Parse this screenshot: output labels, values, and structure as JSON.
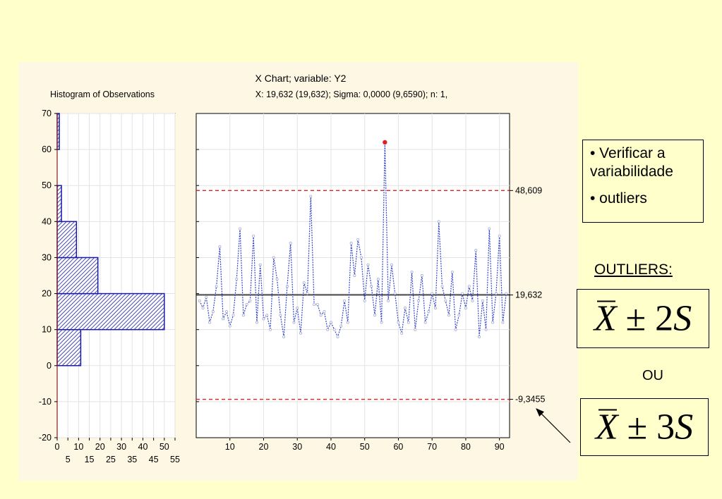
{
  "chart_data": [
    {
      "type": "bar",
      "orientation": "horizontal",
      "title": "Histogram of Observations",
      "bins": [
        {
          "from": 0,
          "to": 10,
          "count": 11
        },
        {
          "from": 10,
          "to": 20,
          "count": 50
        },
        {
          "from": 20,
          "to": 30,
          "count": 19
        },
        {
          "from": 30,
          "to": 40,
          "count": 9
        },
        {
          "from": 40,
          "to": 50,
          "count": 2
        },
        {
          "from": 50,
          "to": 60,
          "count": 0
        },
        {
          "from": 60,
          "to": 70,
          "count": 1
        }
      ],
      "ylim": [
        -20,
        70
      ],
      "yticks": [
        70,
        60,
        50,
        40,
        30,
        20,
        10,
        0,
        -10,
        -20
      ],
      "xlim": [
        0,
        55
      ],
      "xticks_top": [
        0,
        10,
        20,
        30,
        40,
        50
      ],
      "xticks_bottom": [
        5,
        15,
        25,
        35,
        45,
        55
      ],
      "bar_color": "#1a1aa8",
      "hatch": "diagonal"
    },
    {
      "type": "line",
      "title": "X Chart; variable:  Y2",
      "subtitle": "X: 19,632 (19,632); Sigma: 0,0000 (9,6590); n: 1,",
      "x": [
        1,
        2,
        3,
        4,
        5,
        6,
        7,
        8,
        9,
        10,
        11,
        12,
        13,
        14,
        15,
        16,
        17,
        18,
        19,
        20,
        21,
        22,
        23,
        24,
        25,
        26,
        27,
        28,
        29,
        30,
        31,
        32,
        33,
        34,
        35,
        36,
        37,
        38,
        39,
        40,
        41,
        42,
        43,
        44,
        45,
        46,
        47,
        48,
        49,
        50,
        51,
        52,
        53,
        54,
        55,
        56,
        57,
        58,
        59,
        60,
        61,
        62,
        63,
        64,
        65,
        66,
        67,
        68,
        69,
        70,
        71,
        72,
        73,
        74,
        75,
        76,
        77,
        78,
        79,
        80,
        81,
        82,
        83,
        84,
        85,
        86,
        87,
        88,
        89,
        90,
        91,
        92
      ],
      "values": [
        18,
        16,
        19,
        12,
        15,
        22,
        33,
        13,
        15,
        11,
        14,
        24,
        38,
        14,
        17,
        18,
        36,
        12,
        28,
        13,
        14,
        10,
        30,
        24,
        14,
        8,
        22,
        34,
        12,
        16,
        9,
        23,
        20,
        47,
        17,
        17,
        14,
        15,
        10,
        12,
        10,
        8,
        11,
        18,
        12,
        34,
        25,
        35,
        30,
        18,
        28,
        22,
        14,
        24,
        12,
        62,
        18,
        28,
        20,
        12,
        9,
        16,
        12,
        26,
        10,
        18,
        25,
        12,
        15,
        20,
        16,
        40,
        22,
        18,
        14,
        26,
        10,
        14,
        20,
        16,
        22,
        18,
        32,
        8,
        18,
        10,
        38,
        12,
        20,
        36,
        12,
        20
      ],
      "highlight_point": {
        "x": 56,
        "y": 62,
        "color": "#e02020"
      },
      "center_line": {
        "value": 19.632,
        "label": "19,632"
      },
      "ucl": {
        "value": 48.609,
        "label": "48,609"
      },
      "lcl": {
        "value": -9.3455,
        "label": "-9,3455"
      },
      "xlim": [
        0,
        93
      ],
      "xticks": [
        10,
        20,
        30,
        40,
        50,
        60,
        70,
        80,
        90
      ],
      "ylim": [
        -20,
        70
      ],
      "line_color": "#3344cc",
      "limit_color": "#e02020",
      "grid": true
    }
  ],
  "notes": {
    "items": [
      "• Verificar a variabilidade",
      "• outliers"
    ]
  },
  "outliers_heading": "OUTLIERS:",
  "formula_2s": {
    "bar": "X",
    "op": "±",
    "factor": "2",
    "var": "S"
  },
  "connector": "OU",
  "formula_3s": {
    "bar": "X",
    "op": "±",
    "factor": "3",
    "var": "S"
  }
}
